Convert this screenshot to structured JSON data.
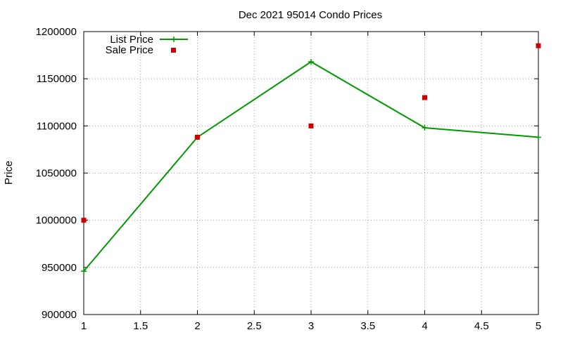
{
  "chart_data": {
    "type": "line",
    "title": "Dec 2021 95014 Condo Prices",
    "xlabel": "",
    "ylabel": "Price",
    "xlim": [
      1,
      5
    ],
    "ylim": [
      900000,
      1200000
    ],
    "x_ticks": [
      "1",
      "1.5",
      "2",
      "2.5",
      "3",
      "3.5",
      "4",
      "4.5",
      "5"
    ],
    "y_ticks": [
      "900000",
      "950000",
      "1000000",
      "1050000",
      "1100000",
      "1150000",
      "1200000"
    ],
    "grid": true,
    "legend_position": "top-left",
    "series": [
      {
        "name": "List Price",
        "style": "line+cross",
        "color": "#009900",
        "points": [
          {
            "x": 1,
            "y": 946000
          },
          {
            "x": 2,
            "y": 1088000
          },
          {
            "x": 3,
            "y": 1168000
          },
          {
            "x": 4,
            "y": 1098000
          },
          {
            "x": 5,
            "y": 1088000
          }
        ]
      },
      {
        "name": "Sale Price",
        "style": "square",
        "color": "#cc0000",
        "points": [
          {
            "x": 1,
            "y": 1000000
          },
          {
            "x": 2,
            "y": 1088000
          },
          {
            "x": 3,
            "y": 1100000
          },
          {
            "x": 4,
            "y": 1130000
          },
          {
            "x": 5,
            "y": 1185000
          }
        ]
      }
    ]
  }
}
